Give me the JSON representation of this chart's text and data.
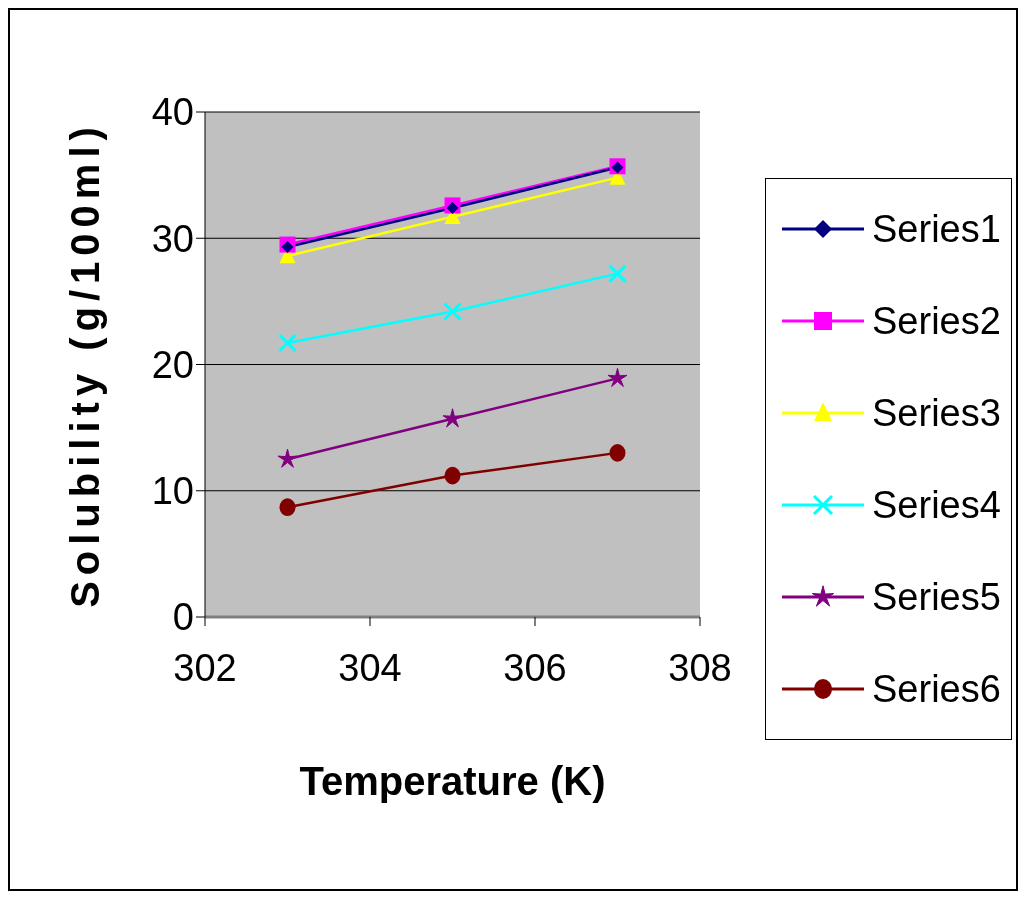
{
  "chart_data": {
    "type": "line",
    "xlabel": "Temperature (K)",
    "ylabel": "Solubility (g/100ml)",
    "x": [
      303,
      305,
      307
    ],
    "series": [
      {
        "name": "Series1",
        "color": "#000080",
        "marker": "diamond",
        "values": [
          29.3,
          32.4,
          35.6
        ]
      },
      {
        "name": "Series2",
        "color": "#ff00ff",
        "marker": "square",
        "values": [
          29.5,
          32.6,
          35.7
        ]
      },
      {
        "name": "Series3",
        "color": "#ffff00",
        "marker": "triangle",
        "values": [
          28.6,
          31.7,
          34.8
        ]
      },
      {
        "name": "Series4",
        "color": "#00ffff",
        "marker": "cross",
        "values": [
          21.7,
          24.2,
          27.2
        ]
      },
      {
        "name": "Series5",
        "color": "#800080",
        "marker": "star",
        "values": [
          12.5,
          15.7,
          18.9
        ]
      },
      {
        "name": "Series6",
        "color": "#800000",
        "marker": "circle",
        "values": [
          8.7,
          11.2,
          13.0
        ]
      }
    ],
    "xlim": [
      302,
      308
    ],
    "xticks": [
      302,
      304,
      306,
      308
    ],
    "ylim": [
      0,
      40
    ],
    "yticks": [
      0,
      10,
      20,
      30,
      40
    ],
    "grid": "y",
    "legend": "right"
  }
}
